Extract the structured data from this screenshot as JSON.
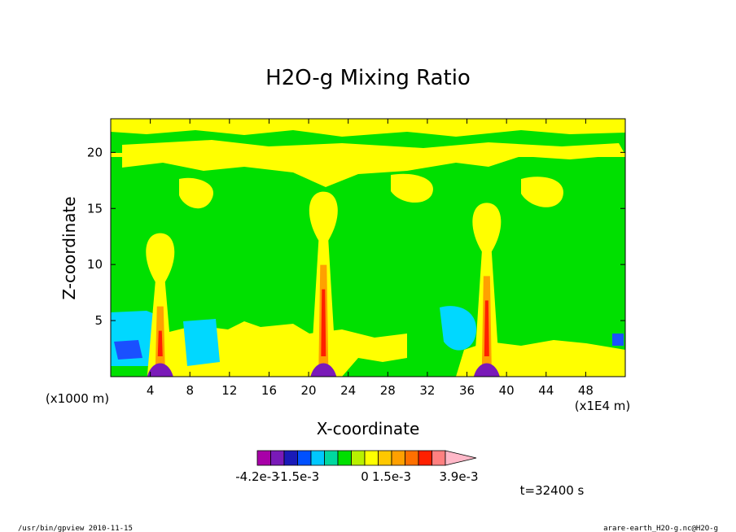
{
  "chart_data": {
    "type": "heatmap",
    "title": "H2O-g Mixing Ratio",
    "xlabel": "X-coordinate",
    "ylabel": "Z-coordinate",
    "x_unit_left": "(x1000 m)",
    "x_unit_right": "(x1E4 m)",
    "xlim": [
      0,
      52
    ],
    "ylim": [
      0,
      23
    ],
    "x_ticks": [
      "4",
      "8",
      "12",
      "16",
      "20",
      "24",
      "28",
      "32",
      "36",
      "40",
      "44",
      "48"
    ],
    "y_ticks": [
      "5",
      "10",
      "15",
      "20"
    ],
    "x_tick_values": [
      4,
      8,
      12,
      16,
      20,
      24,
      28,
      32,
      36,
      40,
      44,
      48
    ],
    "y_tick_values": [
      5,
      10,
      15,
      20
    ],
    "colorbar": {
      "colors": [
        "#a800a8",
        "#7a1ab8",
        "#1a1ab8",
        "#0050ff",
        "#00c8ff",
        "#00d8a0",
        "#00e000",
        "#b8f000",
        "#ffff00",
        "#ffc800",
        "#ffa000",
        "#ff7000",
        "#ff2000",
        "#ff8080",
        "#ffb8c8"
      ],
      "labels": [
        "-4.2e-3",
        "-1.5e-3",
        "0",
        "1.5e-3",
        "3.9e-3"
      ]
    },
    "plumes": [
      {
        "x": 5.0,
        "top": 12.8,
        "color": "#ffff00"
      },
      {
        "x": 21.5,
        "top": 16.5,
        "color": "#ffff00"
      },
      {
        "x": 38.0,
        "top": 15.5,
        "color": "#ffff00"
      }
    ],
    "time_label": "t=32400 s"
  },
  "footer": {
    "left": "/usr/bin/gpview   2010-11-15",
    "right": "arare-earth_H2O-g.nc@H2O-g"
  }
}
